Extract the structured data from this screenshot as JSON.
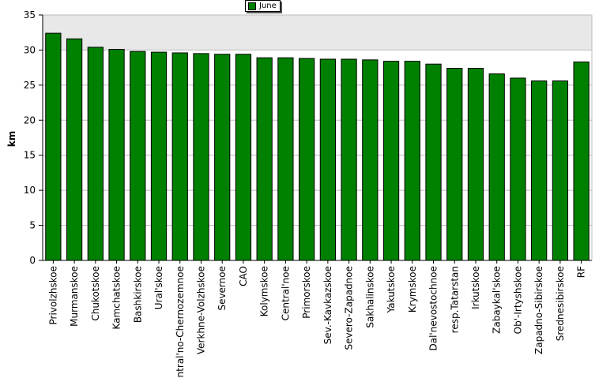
{
  "chart_data": {
    "type": "bar",
    "ylabel": "km",
    "ylim": [
      0,
      35
    ],
    "yticks": [
      0,
      5,
      10,
      15,
      20,
      25,
      30,
      35
    ],
    "grid": true,
    "legend_position": "top-center",
    "bar_color": "#008000",
    "categories": [
      "Privolzhskoe",
      "Murmanskoe",
      "Chukotskoe",
      "Kamchatskoe",
      "Bashkirskoe",
      "Ural'skoe",
      "Central'no-Chernozemnoe",
      "Verkhne-Volzhskoe",
      "Severnoe",
      "CAO",
      "Kolymskoe",
      "Central'noe",
      "Primorskoe",
      "Sev.-Kavkazskoe",
      "Severo-Zapadnoe",
      "Sakhalinskoe",
      "Yakutskoe",
      "Krymskoe",
      "Dal'nevostochnoe",
      "resp.Tatarstan",
      "Irkutskoe",
      "Zabaykal'skoe",
      "Ob'-Irtyshskoe",
      "Zapadno-Sibirskoe",
      "Srednesibirskoe",
      "RF"
    ],
    "series": [
      {
        "name": "June",
        "values": [
          32.4,
          31.6,
          30.4,
          30.1,
          29.8,
          29.7,
          29.6,
          29.5,
          29.4,
          29.4,
          28.9,
          28.9,
          28.8,
          28.7,
          28.7,
          28.6,
          28.4,
          28.4,
          28.0,
          27.4,
          27.4,
          26.6,
          26.0,
          25.6,
          25.6,
          28.3
        ]
      }
    ]
  }
}
